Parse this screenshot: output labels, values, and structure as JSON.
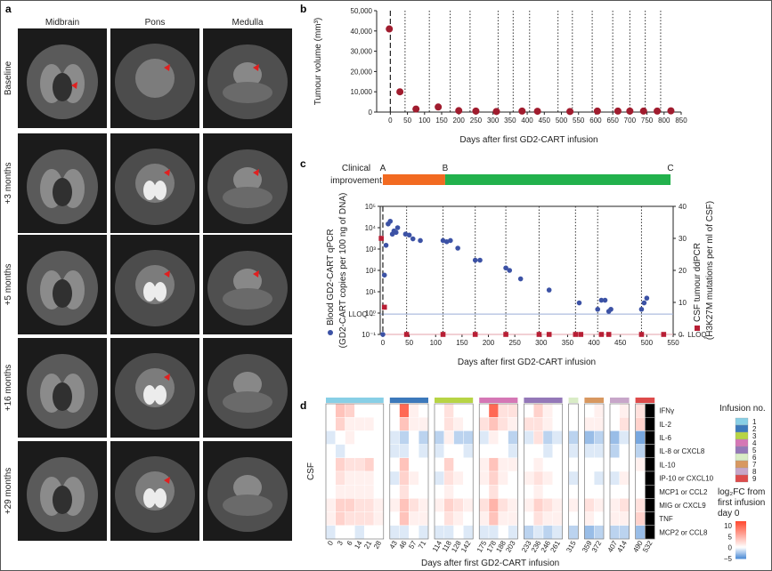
{
  "panel_a": {
    "letter": "a",
    "columns": [
      "Midbrain",
      "Pons",
      "Medulla"
    ],
    "rows": [
      "Baseline",
      "+3 months",
      "+5 months",
      "+16 months",
      "+29 months"
    ]
  },
  "chart_data": [
    {
      "panel": "b",
      "type": "scatter",
      "xlabel": "Days after first GD2-CART infusion",
      "ylabel": "Tumour volume (mm³)",
      "xticks": [
        0,
        50,
        100,
        150,
        200,
        250,
        300,
        350,
        400,
        450,
        500,
        550,
        600,
        650,
        700,
        750,
        800,
        850
      ],
      "yticks": [
        "0",
        "10,000",
        "20,000",
        "30,000",
        "40,000",
        "50,000"
      ],
      "xlim": [
        -40,
        850
      ],
      "ylim": [
        0,
        50000
      ],
      "points": [
        {
          "x": -3,
          "y": 41000
        },
        {
          "x": 28,
          "y": 10000
        },
        {
          "x": 75,
          "y": 1500
        },
        {
          "x": 140,
          "y": 2500
        },
        {
          "x": 200,
          "y": 700
        },
        {
          "x": 250,
          "y": 500
        },
        {
          "x": 310,
          "y": 300
        },
        {
          "x": 385,
          "y": 500
        },
        {
          "x": 430,
          "y": 400
        },
        {
          "x": 525,
          "y": 300
        },
        {
          "x": 605,
          "y": 500
        },
        {
          "x": 665,
          "y": 500
        },
        {
          "x": 700,
          "y": 500
        },
        {
          "x": 740,
          "y": 500
        },
        {
          "x": 780,
          "y": 500
        },
        {
          "x": 820,
          "y": 600
        }
      ],
      "infusion_lines": [
        43,
        114,
        175,
        233,
        315,
        359,
        407,
        490,
        532,
        590,
        650,
        700,
        745,
        790
      ],
      "point_color": "#a01c2e"
    },
    {
      "panel": "c",
      "type": "scatter",
      "clinical_label": "Clinical improvement",
      "phases": [
        {
          "marker": "A",
          "start": 0,
          "end": 118,
          "color": "#f26a21"
        },
        {
          "marker": "B",
          "start": 118,
          "end": 545,
          "color": "#22b14c"
        },
        {
          "marker": "C",
          "start": 545,
          "end": 545,
          "color": "#22b14c"
        }
      ],
      "xlabel": "Days after first GD2-CART infusion",
      "ylabel_left": "Blood GD2-CART qPCR (GD2-CART copies per 100 ng of DNA)",
      "ylabel_right": "CSF tumour ddPCR (H3K27M mutations per ml of CSF)",
      "legend_blood": "Blood GD2-CART qPCR",
      "legend_blood_unit": "(GD2-CART copies per 100 ng of DNA)",
      "legend_csf": "CSF tumour ddPCR",
      "legend_csf_unit": "(H3K27M mutations per ml of CSF)",
      "xticks": [
        0,
        50,
        100,
        150,
        200,
        250,
        300,
        350,
        400,
        450,
        500,
        550
      ],
      "yticks_left": [
        "10⁻¹",
        "10⁰",
        "10¹",
        "10²",
        "10³",
        "10⁴",
        "10⁵"
      ],
      "yticks_right": [
        0,
        10,
        20,
        30,
        40
      ],
      "lloq_label": "LLOQ",
      "xlim": [
        -5,
        550
      ],
      "blood": [
        {
          "x": 0,
          "y": 0.1
        },
        {
          "x": 3,
          "y": 60
        },
        {
          "x": 6,
          "y": 1500
        },
        {
          "x": 10,
          "y": 15000
        },
        {
          "x": 14,
          "y": 20000
        },
        {
          "x": 18,
          "y": 5000
        },
        {
          "x": 21,
          "y": 7000
        },
        {
          "x": 25,
          "y": 6000
        },
        {
          "x": 28,
          "y": 10000
        },
        {
          "x": 43,
          "y": 5000
        },
        {
          "x": 50,
          "y": 4500
        },
        {
          "x": 57,
          "y": 3000
        },
        {
          "x": 71,
          "y": 2500
        },
        {
          "x": 114,
          "y": 2500
        },
        {
          "x": 121,
          "y": 2200
        },
        {
          "x": 128,
          "y": 2500
        },
        {
          "x": 142,
          "y": 1100
        },
        {
          "x": 175,
          "y": 300
        },
        {
          "x": 184,
          "y": 300
        },
        {
          "x": 233,
          "y": 130
        },
        {
          "x": 240,
          "y": 100
        },
        {
          "x": 261,
          "y": 40
        },
        {
          "x": 315,
          "y": 12
        },
        {
          "x": 372,
          "y": 3
        },
        {
          "x": 407,
          "y": 1.5
        },
        {
          "x": 414,
          "y": 4
        },
        {
          "x": 421,
          "y": 4
        },
        {
          "x": 428,
          "y": 1.2
        },
        {
          "x": 432,
          "y": 1.5
        },
        {
          "x": 490,
          "y": 1.5
        },
        {
          "x": 495,
          "y": 3
        },
        {
          "x": 500,
          "y": 5
        }
      ],
      "csf": [
        {
          "x": -3,
          "y": 30
        },
        {
          "x": 3,
          "y": 8.5
        },
        {
          "x": 45,
          "y": 0
        },
        {
          "x": 114,
          "y": 0
        },
        {
          "x": 175,
          "y": 0
        },
        {
          "x": 233,
          "y": 0
        },
        {
          "x": 296,
          "y": 0
        },
        {
          "x": 315,
          "y": 0
        },
        {
          "x": 365,
          "y": 0
        },
        {
          "x": 375,
          "y": 0
        },
        {
          "x": 414,
          "y": 0
        },
        {
          "x": 428,
          "y": 0
        },
        {
          "x": 490,
          "y": 0
        },
        {
          "x": 532,
          "y": 0
        }
      ],
      "infusion_lines": [
        0,
        45,
        114,
        175,
        233,
        296,
        365,
        407,
        490
      ],
      "blood_color": "#3c52a5",
      "csf_color": "#b81f35"
    },
    {
      "panel": "d",
      "type": "heatmap",
      "row_group_label": "CSF",
      "rows": [
        "IFNγ",
        "IL-2",
        "IL-6",
        "IL-8 or CXCL8",
        "IL-10",
        "IP-10 or CXCL10",
        "MCP1 or CCL2",
        "MIG or CXCL9",
        "TNF",
        "MCP2 or CCL8"
      ],
      "groups": [
        {
          "infusion": 1,
          "days": [
            "0",
            "3",
            "6",
            "14",
            "21",
            "28"
          ],
          "color": "#88cfe6"
        },
        {
          "infusion": 2,
          "days": [
            "43",
            "46",
            "57",
            "71"
          ],
          "color": "#3c79bb"
        },
        {
          "infusion": 3,
          "days": [
            "114",
            "118",
            "128",
            "142"
          ],
          "color": "#b7d445"
        },
        {
          "infusion": 4,
          "days": [
            "175",
            "178",
            "188",
            "203"
          ],
          "color": "#d577b5"
        },
        {
          "infusion": 5,
          "days": [
            "233",
            "236",
            "246",
            "261"
          ],
          "color": "#9478b8"
        },
        {
          "infusion": 6,
          "days": [
            "315"
          ],
          "color": "#d9ecc6"
        },
        {
          "infusion": 7,
          "days": [
            "359",
            "372"
          ],
          "color": "#d89860"
        },
        {
          "infusion": 8,
          "days": [
            "407",
            "414"
          ],
          "color": "#c7a6c9"
        },
        {
          "infusion": 9,
          "days": [
            "490",
            "532"
          ],
          "color": "#dd4b4b"
        }
      ],
      "values": [
        [
          0,
          4,
          3,
          0,
          0,
          0,
          0,
          10,
          1,
          0,
          0,
          2,
          0,
          0,
          0,
          10,
          2,
          2,
          0,
          3,
          1,
          0,
          0,
          0,
          1,
          0,
          1,
          2
        ],
        [
          0,
          3,
          1,
          1,
          1,
          0,
          0,
          4,
          1,
          1,
          0,
          2,
          1,
          0,
          2,
          4,
          2,
          1,
          2,
          2,
          1,
          0,
          0,
          1,
          1,
          0,
          2,
          3
        ],
        [
          -1,
          0,
          1,
          0,
          0,
          0,
          -1,
          -2,
          0,
          -2,
          -2,
          1,
          -2,
          -2,
          -1,
          1,
          0,
          -2,
          -1,
          2,
          -2,
          -1,
          -2,
          -3,
          -2,
          -3,
          -1,
          -4
        ],
        [
          0,
          -1,
          0,
          0,
          0,
          0,
          -1,
          -1,
          0,
          -1,
          -1,
          0,
          0,
          -1,
          0,
          0,
          0,
          -1,
          0,
          0,
          -1,
          0,
          -1,
          -1,
          -1,
          -2,
          0,
          -2
        ],
        [
          0,
          3,
          2,
          2,
          3,
          0,
          0,
          4,
          0,
          0,
          0,
          3,
          0,
          0,
          1,
          4,
          1,
          1,
          0,
          1,
          0,
          0,
          0,
          0,
          0,
          0,
          0,
          1
        ],
        [
          0,
          2,
          1,
          1,
          1,
          0,
          -1,
          3,
          1,
          0,
          -1,
          2,
          1,
          0,
          1,
          3,
          1,
          0,
          1,
          2,
          1,
          0,
          -1,
          0,
          -1,
          -1,
          1,
          0
        ],
        [
          0,
          1,
          1,
          1,
          1,
          0,
          0,
          2,
          0,
          0,
          0,
          1,
          0,
          0,
          0,
          2,
          0,
          0,
          0,
          1,
          0,
          0,
          0,
          0,
          0,
          0,
          0,
          0
        ],
        [
          1,
          3,
          3,
          2,
          2,
          1,
          1,
          4,
          2,
          1,
          1,
          3,
          2,
          1,
          2,
          5,
          2,
          1,
          1,
          3,
          2,
          1,
          1,
          2,
          1,
          1,
          2,
          2
        ],
        [
          1,
          3,
          2,
          2,
          2,
          1,
          0,
          4,
          1,
          1,
          0,
          2,
          1,
          0,
          1,
          4,
          1,
          1,
          0,
          2,
          1,
          1,
          0,
          1,
          0,
          1,
          1,
          3
        ],
        [
          -1,
          0,
          0,
          -1,
          0,
          0,
          -1,
          -1,
          0,
          -1,
          -1,
          -1,
          0,
          -1,
          -1,
          -1,
          0,
          -1,
          -2,
          -1,
          -2,
          -1,
          -2,
          -3,
          -2,
          -2,
          -2,
          -3
        ]
      ],
      "xlabel": "Days after first GD2-CART infusion",
      "legend_title": "Infusion no.",
      "legend_items": [
        "1",
        "2",
        "3",
        "4",
        "5",
        "6",
        "7",
        "8",
        "9"
      ],
      "colorbar_title_a": "log₂FC from",
      "colorbar_title_b": "first infusion",
      "colorbar_title_c": "day 0",
      "colorbar_ticks": [
        "10",
        "5",
        "0",
        "−5"
      ],
      "colorbar_range": [
        -5,
        12
      ]
    }
  ]
}
